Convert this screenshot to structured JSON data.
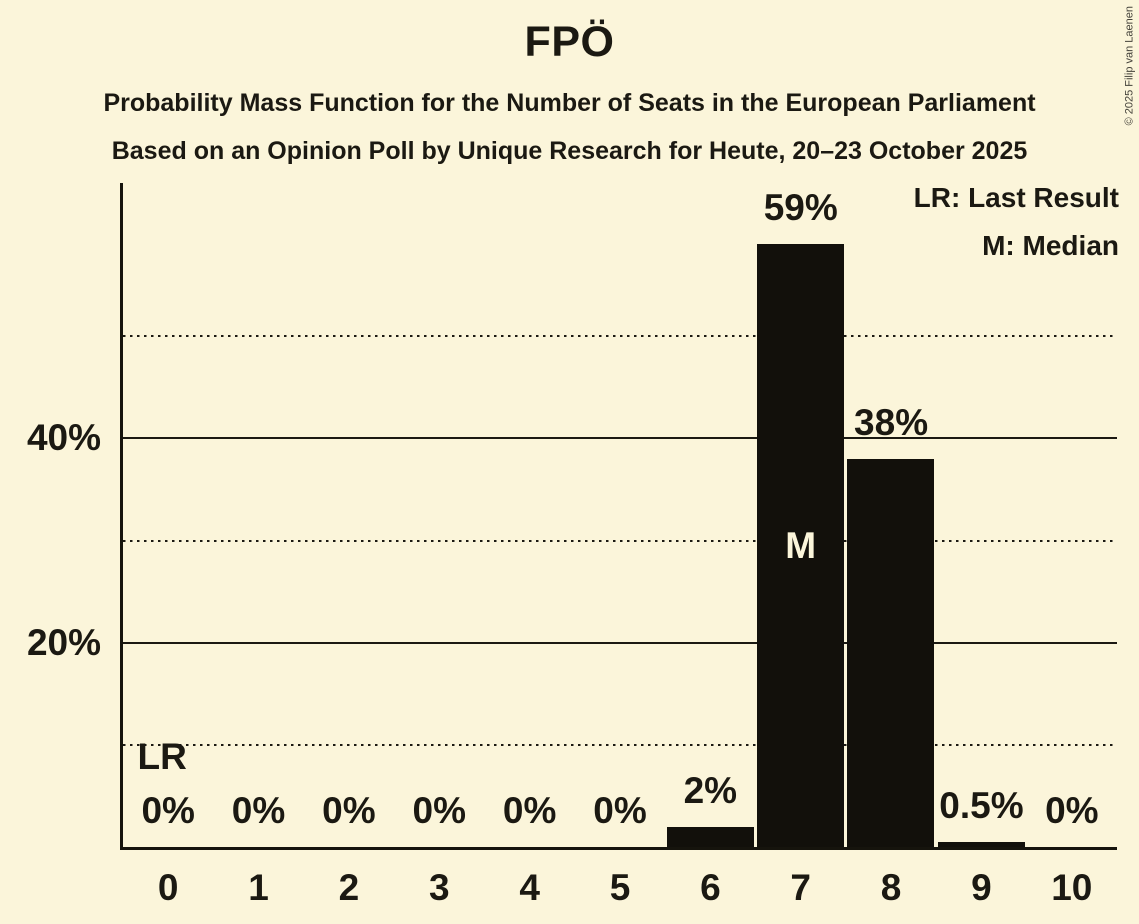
{
  "title": "FPÖ",
  "subtitle1": "Probability Mass Function for the Number of Seats in the European Parliament",
  "subtitle2": "Based on an Opinion Poll by Unique Research for Heute, 20–23 October 2025",
  "copyright": "© 2025 Filip van Laenen",
  "legend": {
    "last_result": "LR: Last Result",
    "median": "M: Median"
  },
  "colors": {
    "background": "#fbf5da",
    "bar": "#12100b",
    "text": "#1b1912"
  },
  "chart_data": {
    "type": "bar",
    "title": "FPÖ",
    "xlabel": "",
    "ylabel": "",
    "categories": [
      "0",
      "1",
      "2",
      "3",
      "4",
      "5",
      "6",
      "7",
      "8",
      "9",
      "10"
    ],
    "values": [
      0,
      0,
      0,
      0,
      0,
      0,
      2,
      59,
      38,
      0.5,
      0
    ],
    "bar_labels": [
      "0%",
      "0%",
      "0%",
      "0%",
      "0%",
      "0%",
      "2%",
      "59%",
      "38%",
      "0.5%",
      "0%"
    ],
    "ylim": [
      0,
      65
    ],
    "ytick_labels": [
      {
        "value": 20,
        "label": "20%"
      },
      {
        "value": 40,
        "label": "40%"
      }
    ],
    "solid_gridlines": [
      20,
      40
    ],
    "dotted_gridlines": [
      10,
      30,
      50
    ],
    "grid": "horizontal",
    "legend_position": "top-right",
    "annotations": {
      "last_result": {
        "label": "LR",
        "seat": 0
      },
      "median": {
        "label": "M",
        "seat": 7
      }
    }
  }
}
